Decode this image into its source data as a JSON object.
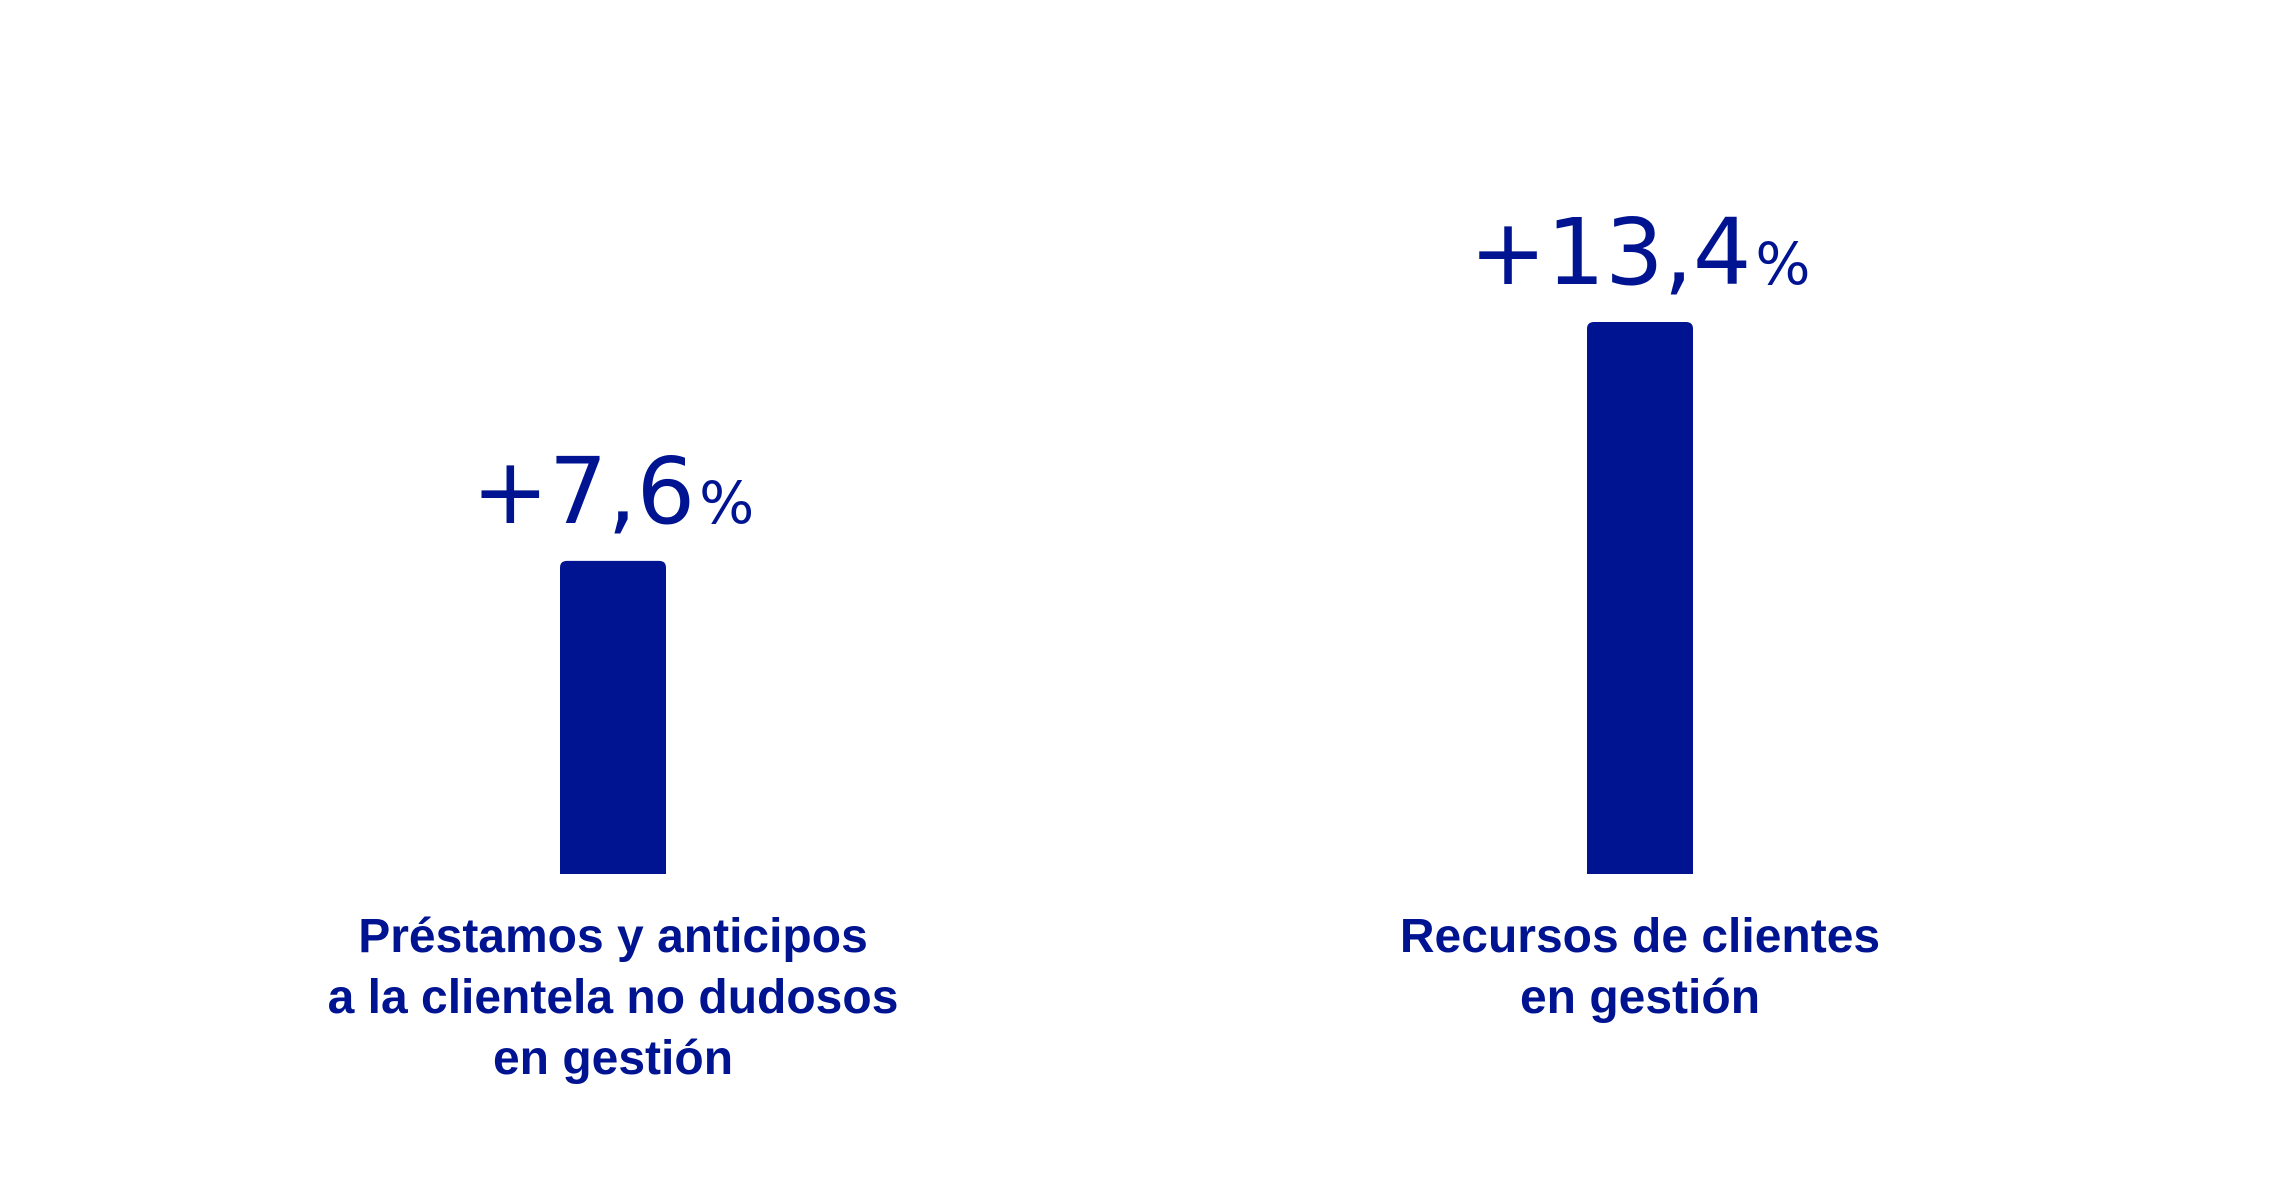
{
  "chart_data": {
    "type": "bar",
    "categories": [
      [
        "Préstamos y anticipos",
        "a la clientela no dudosos",
        "en gestión"
      ],
      [
        "Recursos de clientes",
        "en gestión"
      ]
    ],
    "values": [
      7.6,
      13.4
    ],
    "value_labels": [
      {
        "number": "+7,6",
        "unit": "%"
      },
      {
        "number": "+13,4",
        "unit": "%"
      }
    ],
    "ylim": [
      0,
      13.4
    ],
    "grid": false,
    "legend": "none",
    "colors": {
      "bar": "#001391",
      "text": "#001391",
      "background": "#ffffff"
    }
  }
}
